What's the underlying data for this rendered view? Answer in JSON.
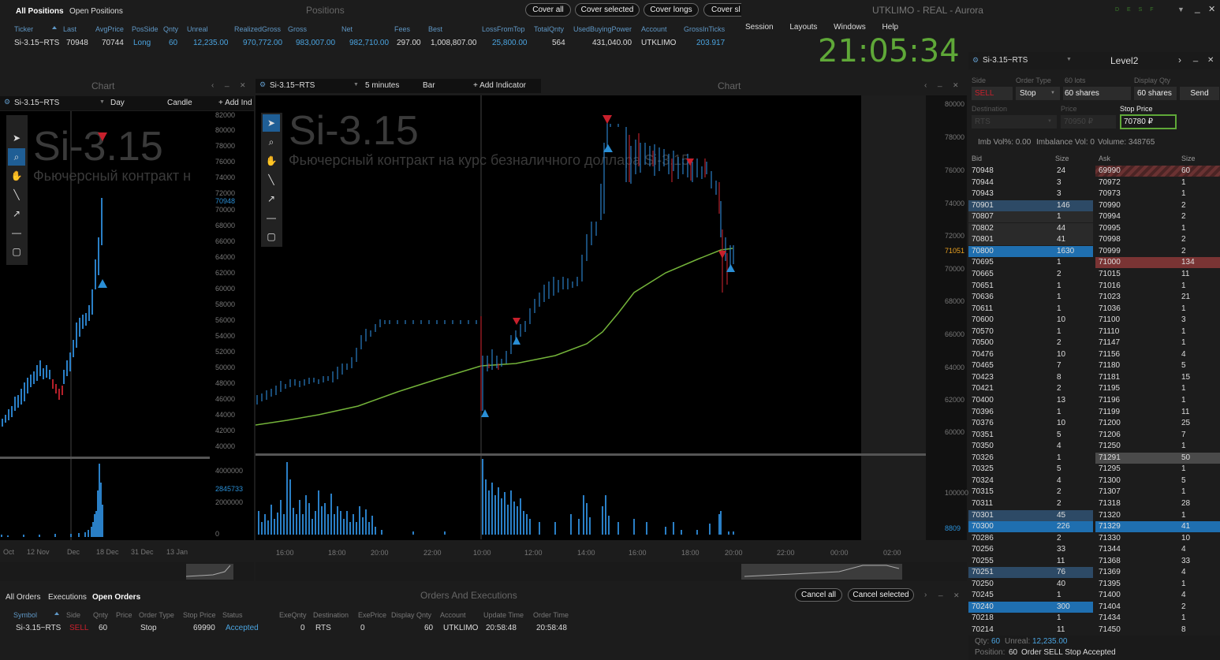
{
  "positions": {
    "tab_all": "All Positions",
    "tab_open": "Open Positions",
    "title": "Positions",
    "buttons": [
      "Cover all",
      "Cover selected",
      "Cover longs",
      "Cover sl"
    ],
    "headers": [
      "Ticker",
      "Last",
      "AvgPrice",
      "PosSide",
      "Qnty",
      "Unreal",
      "RealizedGross",
      "Gross",
      "Net",
      "Fees",
      "Best",
      "LossFromTop",
      "TotalQnty",
      "UsedBuyingPower",
      "Account",
      "GrossInTicks"
    ],
    "row": [
      "Si-3.15~RTS",
      "70948",
      "70744",
      "Long",
      "60",
      "12,235.00",
      "970,772.00",
      "983,007.00",
      "982,710.00",
      "297.00",
      "1,008,807.00",
      "25,800.00",
      "564",
      "431,040.00",
      "UTKLIMO",
      "203.917"
    ]
  },
  "app": {
    "title": "UTKLIMO - REAL - Aurora",
    "menu": [
      "Session",
      "Layouts",
      "Windows",
      "Help"
    ],
    "clock": "21:05:34",
    "status_dots": "D E S F"
  },
  "chart_left": {
    "panel_title": "Chart",
    "symbol": "Si-3.15~RTS",
    "interval": "Day",
    "style": "Candle",
    "add_indicator": "+ Add Ind",
    "watermark": "Si-3.15",
    "subtitle": "Фьючерсный контракт н",
    "y_ticks": [
      "82000",
      "80000",
      "78000",
      "76000",
      "74000",
      "72000",
      "70948",
      "70000",
      "68000",
      "66000",
      "64000",
      "62000",
      "60000",
      "58000",
      "56000",
      "54000",
      "52000",
      "50000",
      "48000",
      "46000",
      "44000",
      "42000",
      "40000"
    ],
    "vol_ticks": [
      "4000000",
      "2845733",
      "2000000",
      "0"
    ],
    "x_ticks": [
      "Oct",
      "12 Nov",
      "Dec",
      "18 Dec",
      "31 Dec",
      "13 Jan"
    ]
  },
  "chart_main": {
    "panel_title": "Chart",
    "symbol": "Si-3.15~RTS",
    "interval": "5 minutes",
    "style": "Bar",
    "add_indicator": "+ Add Indicator",
    "watermark": "Si-3.15",
    "subtitle": "Фьючерсный контракт на курс безналичного доллара Si-3.15",
    "y_ticks": [
      "80000",
      "78000",
      "76000",
      "74000",
      "72000",
      "71051",
      "70000",
      "68000",
      "66000",
      "64000",
      "62000",
      "60000"
    ],
    "vol_ticks": [
      "100000",
      "8809"
    ],
    "x_ticks": [
      "16:00",
      "18:00",
      "20:00",
      "22:00",
      "10:00",
      "12:00",
      "14:00",
      "16:00",
      "18:00",
      "20:00",
      "22:00",
      "00:00",
      "02:00"
    ]
  },
  "level2": {
    "symbol": "Si-3.15~RTS",
    "title": "Level2",
    "side_lbl": "Side",
    "side_val": "SELL",
    "order_type_lbl": "Order Type",
    "order_type_val": "Stop",
    "lots_lbl": "60 lots",
    "lots_val": "60 shares",
    "display_lbl": "Display Qty",
    "display_val": "60 shares",
    "send": "Send",
    "dest_lbl": "Destination",
    "dest_val": "RTS",
    "price_lbl": "Price",
    "price_val": "70950 ₽",
    "stop_lbl": "Stop Price",
    "stop_val": "70780 ₽",
    "imb_vol": "Imb Vol%: 0.00",
    "imbalance": "Imbalance Vol: 0",
    "volume": "Volume: 348765",
    "col_bid": "Bid",
    "col_size": "Size",
    "col_ask": "Ask",
    "col_size2": "Size",
    "bids": [
      [
        "70948",
        "24"
      ],
      [
        "70944",
        "3"
      ],
      [
        "70943",
        "3"
      ],
      [
        "70901",
        "146"
      ],
      [
        "70807",
        "1"
      ],
      [
        "70802",
        "44"
      ],
      [
        "70801",
        "41"
      ],
      [
        "70800",
        "1630"
      ],
      [
        "70695",
        "1"
      ],
      [
        "70665",
        "2"
      ],
      [
        "70651",
        "1"
      ],
      [
        "70636",
        "1"
      ],
      [
        "70611",
        "1"
      ],
      [
        "70600",
        "10"
      ],
      [
        "70570",
        "1"
      ],
      [
        "70500",
        "2"
      ],
      [
        "70476",
        "10"
      ],
      [
        "70465",
        "7"
      ],
      [
        "70423",
        "8"
      ],
      [
        "70421",
        "2"
      ],
      [
        "70400",
        "13"
      ],
      [
        "70396",
        "1"
      ],
      [
        "70376",
        "10"
      ],
      [
        "70351",
        "5"
      ],
      [
        "70350",
        "4"
      ],
      [
        "70326",
        "1"
      ],
      [
        "70325",
        "5"
      ],
      [
        "70324",
        "4"
      ],
      [
        "70315",
        "2"
      ],
      [
        "70311",
        "2"
      ],
      [
        "70301",
        "45"
      ],
      [
        "70300",
        "226"
      ],
      [
        "70286",
        "2"
      ],
      [
        "70256",
        "33"
      ],
      [
        "70255",
        "11"
      ],
      [
        "70251",
        "76"
      ],
      [
        "70250",
        "40"
      ],
      [
        "70245",
        "1"
      ],
      [
        "70240",
        "300"
      ],
      [
        "70218",
        "1"
      ],
      [
        "70214",
        "11"
      ]
    ],
    "asks": [
      [
        "69990",
        "60"
      ],
      [
        "70972",
        "1"
      ],
      [
        "70973",
        "1"
      ],
      [
        "70990",
        "2"
      ],
      [
        "70994",
        "2"
      ],
      [
        "70995",
        "1"
      ],
      [
        "70998",
        "2"
      ],
      [
        "70999",
        "2"
      ],
      [
        "71000",
        "134"
      ],
      [
        "71015",
        "11"
      ],
      [
        "71016",
        "1"
      ],
      [
        "71023",
        "21"
      ],
      [
        "71036",
        "1"
      ],
      [
        "71100",
        "3"
      ],
      [
        "71110",
        "1"
      ],
      [
        "71147",
        "1"
      ],
      [
        "71156",
        "4"
      ],
      [
        "71180",
        "5"
      ],
      [
        "71181",
        "15"
      ],
      [
        "71195",
        "1"
      ],
      [
        "71196",
        "1"
      ],
      [
        "71199",
        "11"
      ],
      [
        "71200",
        "25"
      ],
      [
        "71206",
        "7"
      ],
      [
        "71250",
        "1"
      ],
      [
        "71291",
        "50"
      ],
      [
        "71295",
        "1"
      ],
      [
        "71300",
        "5"
      ],
      [
        "71307",
        "1"
      ],
      [
        "71318",
        "28"
      ],
      [
        "71320",
        "1"
      ],
      [
        "71329",
        "41"
      ],
      [
        "71330",
        "10"
      ],
      [
        "71344",
        "4"
      ],
      [
        "71368",
        "33"
      ],
      [
        "71369",
        "4"
      ],
      [
        "71395",
        "1"
      ],
      [
        "71400",
        "4"
      ],
      [
        "71404",
        "2"
      ],
      [
        "71434",
        "1"
      ],
      [
        "71450",
        "8"
      ]
    ],
    "qty_lbl": "Qty:",
    "qty_val": "60",
    "unreal_lbl": "Unreal:",
    "unreal_val": "12,235.00",
    "position_lbl": "Position:",
    "position_val": "60",
    "status_msg": "Order SELL Stop Accepted"
  },
  "orders": {
    "tab_all": "All Orders",
    "tab_exec": "Executions",
    "tab_open": "Open Orders",
    "title": "Orders And Executions",
    "cancel_all": "Cancel all",
    "cancel_selected": "Cancel selected",
    "headers": [
      "Symbol",
      "Side",
      "Qnty",
      "Price",
      "Order Type",
      "Stop Price",
      "Status",
      "ExeQnty",
      "Destination",
      "ExePrice",
      "Display Qnty",
      "Account",
      "Update Time",
      "Order Time"
    ],
    "row": [
      "Si-3.15~RTS",
      "SELL",
      "60",
      "",
      "Stop",
      "69990",
      "Accepted",
      "0",
      "RTS",
      "0",
      "60",
      "UTKLIMO",
      "20:58:48",
      "20:58:48"
    ]
  }
}
